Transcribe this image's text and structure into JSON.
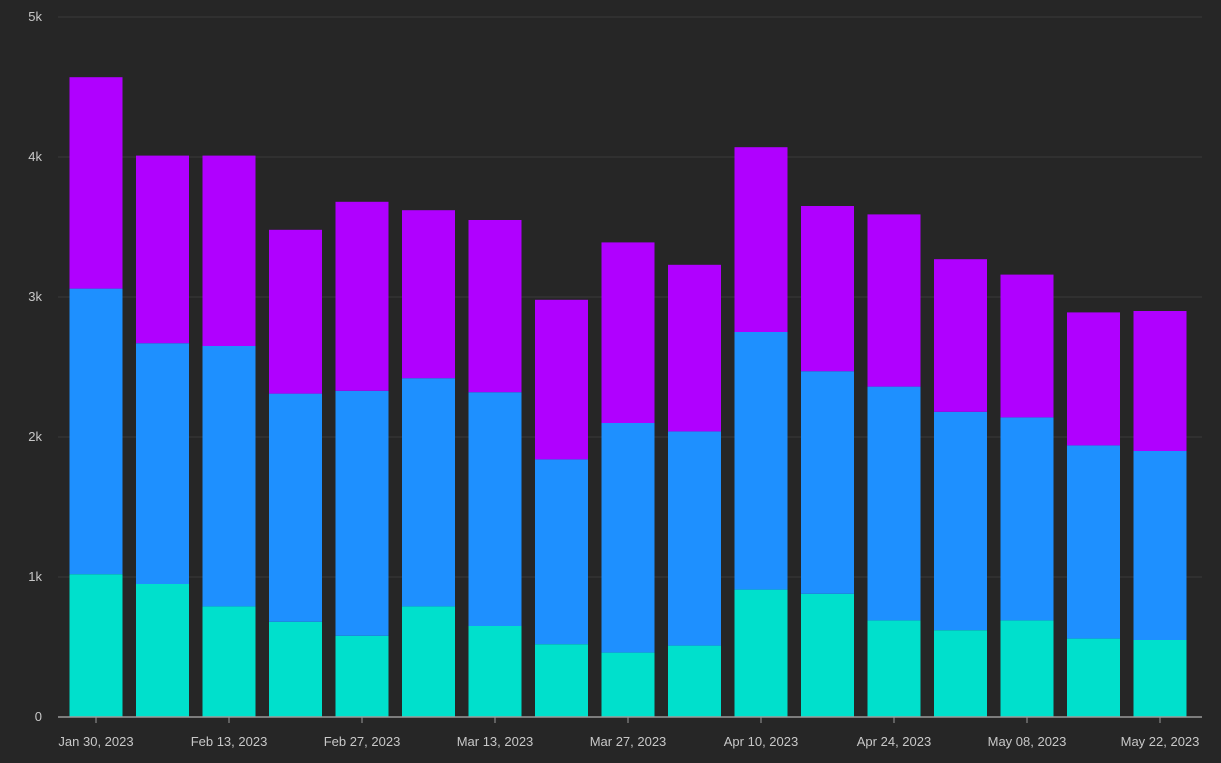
{
  "chart_data": {
    "type": "bar",
    "stacked": true,
    "categories": [
      "2023-01-30",
      "2023-02-06",
      "2023-02-13",
      "2023-02-20",
      "2023-02-27",
      "2023-03-06",
      "2023-03-13",
      "2023-03-20",
      "2023-03-27",
      "2023-04-03",
      "2023-04-10",
      "2023-04-17",
      "2023-04-24",
      "2023-05-01",
      "2023-05-08",
      "2023-05-15",
      "2023-05-22"
    ],
    "x_tick_labels": [
      "Jan 30, 2023",
      "Feb 13, 2023",
      "Feb 27, 2023",
      "Mar 13, 2023",
      "Mar 27, 2023",
      "Apr 10, 2023",
      "Apr 24, 2023",
      "May 08, 2023",
      "May 22, 2023"
    ],
    "x_tick_categories": [
      "2023-01-30",
      "2023-02-13",
      "2023-02-27",
      "2023-03-13",
      "2023-03-27",
      "2023-04-10",
      "2023-04-24",
      "2023-05-08",
      "2023-05-22"
    ],
    "y_tick_values": [
      0,
      1000,
      2000,
      3000,
      4000,
      5000
    ],
    "y_tick_labels": [
      "0",
      "1k",
      "2k",
      "3k",
      "4k",
      "5k"
    ],
    "ylim": [
      0,
      5000
    ],
    "grid": true,
    "legend": "none",
    "series": [
      {
        "color": "#00e0cc",
        "values": [
          1020,
          950,
          790,
          680,
          580,
          790,
          650,
          520,
          460,
          510,
          910,
          880,
          690,
          620,
          690,
          560,
          550
        ]
      },
      {
        "color": "#1e90ff",
        "values": [
          2040,
          1720,
          1860,
          1630,
          1750,
          1630,
          1670,
          1320,
          1640,
          1530,
          1840,
          1590,
          1670,
          1560,
          1450,
          1380,
          1350
        ]
      },
      {
        "color": "#b000ff",
        "values": [
          1510,
          1340,
          1360,
          1170,
          1350,
          1200,
          1230,
          1140,
          1290,
          1190,
          1320,
          1180,
          1230,
          1090,
          1020,
          950,
          1000
        ]
      }
    ],
    "xlabel": "",
    "ylabel": "",
    "title": ""
  }
}
